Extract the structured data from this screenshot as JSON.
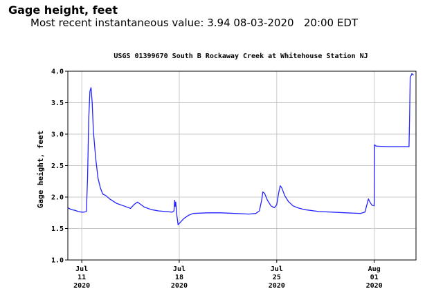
{
  "header": {
    "title": "Gage height, feet",
    "subtitle": "Most recent instantaneous value: 3.94 08-03-2020   20:00 EDT"
  },
  "chart_data": {
    "type": "line",
    "title": "USGS 01399670 South B Rockaway Creek at Whitehouse Station NJ",
    "xlabel": "",
    "ylabel": "Gage height, feet",
    "ylim": [
      1.0,
      4.0
    ],
    "xlim": [
      "2020-07-10",
      "2020-08-04"
    ],
    "yticks": [
      "1.0",
      "1.5",
      "2.0",
      "2.5",
      "3.0",
      "3.5",
      "4.0"
    ],
    "xticks": [
      {
        "date": "2020-07-11",
        "lines": [
          "Jul",
          "11",
          "2020"
        ]
      },
      {
        "date": "2020-07-18",
        "lines": [
          "Jul",
          "18",
          "2020"
        ]
      },
      {
        "date": "2020-07-25",
        "lines": [
          "Jul",
          "25",
          "2020"
        ]
      },
      {
        "date": "2020-08-01",
        "lines": [
          "Aug",
          "01",
          "2020"
        ]
      }
    ],
    "grid": true,
    "line_color": "#2323ff",
    "series": [
      {
        "values": [
          [
            "2020-07-10 00:00",
            1.83
          ],
          [
            "2020-07-10 06:00",
            1.8
          ],
          [
            "2020-07-10 12:00",
            1.79
          ],
          [
            "2020-07-10 18:00",
            1.77
          ],
          [
            "2020-07-11 00:00",
            1.76
          ],
          [
            "2020-07-11 04:00",
            1.76
          ],
          [
            "2020-07-11 08:00",
            1.77
          ],
          [
            "2020-07-11 10:00",
            2.3
          ],
          [
            "2020-07-11 12:00",
            3.25
          ],
          [
            "2020-07-11 14:00",
            3.68
          ],
          [
            "2020-07-11 16:00",
            3.74
          ],
          [
            "2020-07-11 18:00",
            3.5
          ],
          [
            "2020-07-11 20:00",
            3.05
          ],
          [
            "2020-07-12 00:00",
            2.62
          ],
          [
            "2020-07-12 04:00",
            2.3
          ],
          [
            "2020-07-12 08:00",
            2.15
          ],
          [
            "2020-07-12 12:00",
            2.05
          ],
          [
            "2020-07-12 18:00",
            2.02
          ],
          [
            "2020-07-13 00:00",
            1.97
          ],
          [
            "2020-07-13 12:00",
            1.9
          ],
          [
            "2020-07-14 00:00",
            1.86
          ],
          [
            "2020-07-14 12:00",
            1.82
          ],
          [
            "2020-07-14 18:00",
            1.88
          ],
          [
            "2020-07-15 00:00",
            1.92
          ],
          [
            "2020-07-15 06:00",
            1.88
          ],
          [
            "2020-07-15 12:00",
            1.84
          ],
          [
            "2020-07-16 00:00",
            1.8
          ],
          [
            "2020-07-16 12:00",
            1.78
          ],
          [
            "2020-07-17 00:00",
            1.77
          ],
          [
            "2020-07-17 12:00",
            1.76
          ],
          [
            "2020-07-17 15:00",
            1.78
          ],
          [
            "2020-07-17 16:00",
            1.95
          ],
          [
            "2020-07-17 17:00",
            1.85
          ],
          [
            "2020-07-17 18:00",
            1.92
          ],
          [
            "2020-07-17 20:00",
            1.7
          ],
          [
            "2020-07-17 22:00",
            1.56
          ],
          [
            "2020-07-18 02:00",
            1.6
          ],
          [
            "2020-07-18 08:00",
            1.66
          ],
          [
            "2020-07-18 16:00",
            1.71
          ],
          [
            "2020-07-19 00:00",
            1.74
          ],
          [
            "2020-07-20 00:00",
            1.75
          ],
          [
            "2020-07-21 00:00",
            1.75
          ],
          [
            "2020-07-22 00:00",
            1.74
          ],
          [
            "2020-07-23 00:00",
            1.73
          ],
          [
            "2020-07-23 12:00",
            1.74
          ],
          [
            "2020-07-23 18:00",
            1.78
          ],
          [
            "2020-07-23 22:00",
            1.95
          ],
          [
            "2020-07-24 00:00",
            2.08
          ],
          [
            "2020-07-24 03:00",
            2.06
          ],
          [
            "2020-07-24 08:00",
            1.95
          ],
          [
            "2020-07-24 14:00",
            1.86
          ],
          [
            "2020-07-24 20:00",
            1.83
          ],
          [
            "2020-07-25 00:00",
            1.88
          ],
          [
            "2020-07-25 03:00",
            2.05
          ],
          [
            "2020-07-25 06:00",
            2.18
          ],
          [
            "2020-07-25 09:00",
            2.14
          ],
          [
            "2020-07-25 14:00",
            2.02
          ],
          [
            "2020-07-25 20:00",
            1.93
          ],
          [
            "2020-07-26 04:00",
            1.86
          ],
          [
            "2020-07-26 12:00",
            1.83
          ],
          [
            "2020-07-27 00:00",
            1.8
          ],
          [
            "2020-07-28 00:00",
            1.77
          ],
          [
            "2020-07-29 00:00",
            1.76
          ],
          [
            "2020-07-30 00:00",
            1.75
          ],
          [
            "2020-07-31 00:00",
            1.74
          ],
          [
            "2020-07-31 08:00",
            1.76
          ],
          [
            "2020-07-31 12:00",
            1.9
          ],
          [
            "2020-07-31 14:00",
            1.97
          ],
          [
            "2020-07-31 16:00",
            1.93
          ],
          [
            "2020-07-31 20:00",
            1.87
          ],
          [
            "2020-08-01 00:00",
            1.86
          ],
          [
            "2020-08-01 00:30",
            2.83
          ],
          [
            "2020-08-01 03:00",
            2.81
          ],
          [
            "2020-08-02 00:00",
            2.8
          ],
          [
            "2020-08-03 00:00",
            2.8
          ],
          [
            "2020-08-03 12:00",
            2.8
          ],
          [
            "2020-08-03 13:00",
            3.3
          ],
          [
            "2020-08-03 14:00",
            3.9
          ],
          [
            "2020-08-03 17:00",
            3.96
          ],
          [
            "2020-08-03 20:00",
            3.94
          ]
        ]
      }
    ]
  }
}
